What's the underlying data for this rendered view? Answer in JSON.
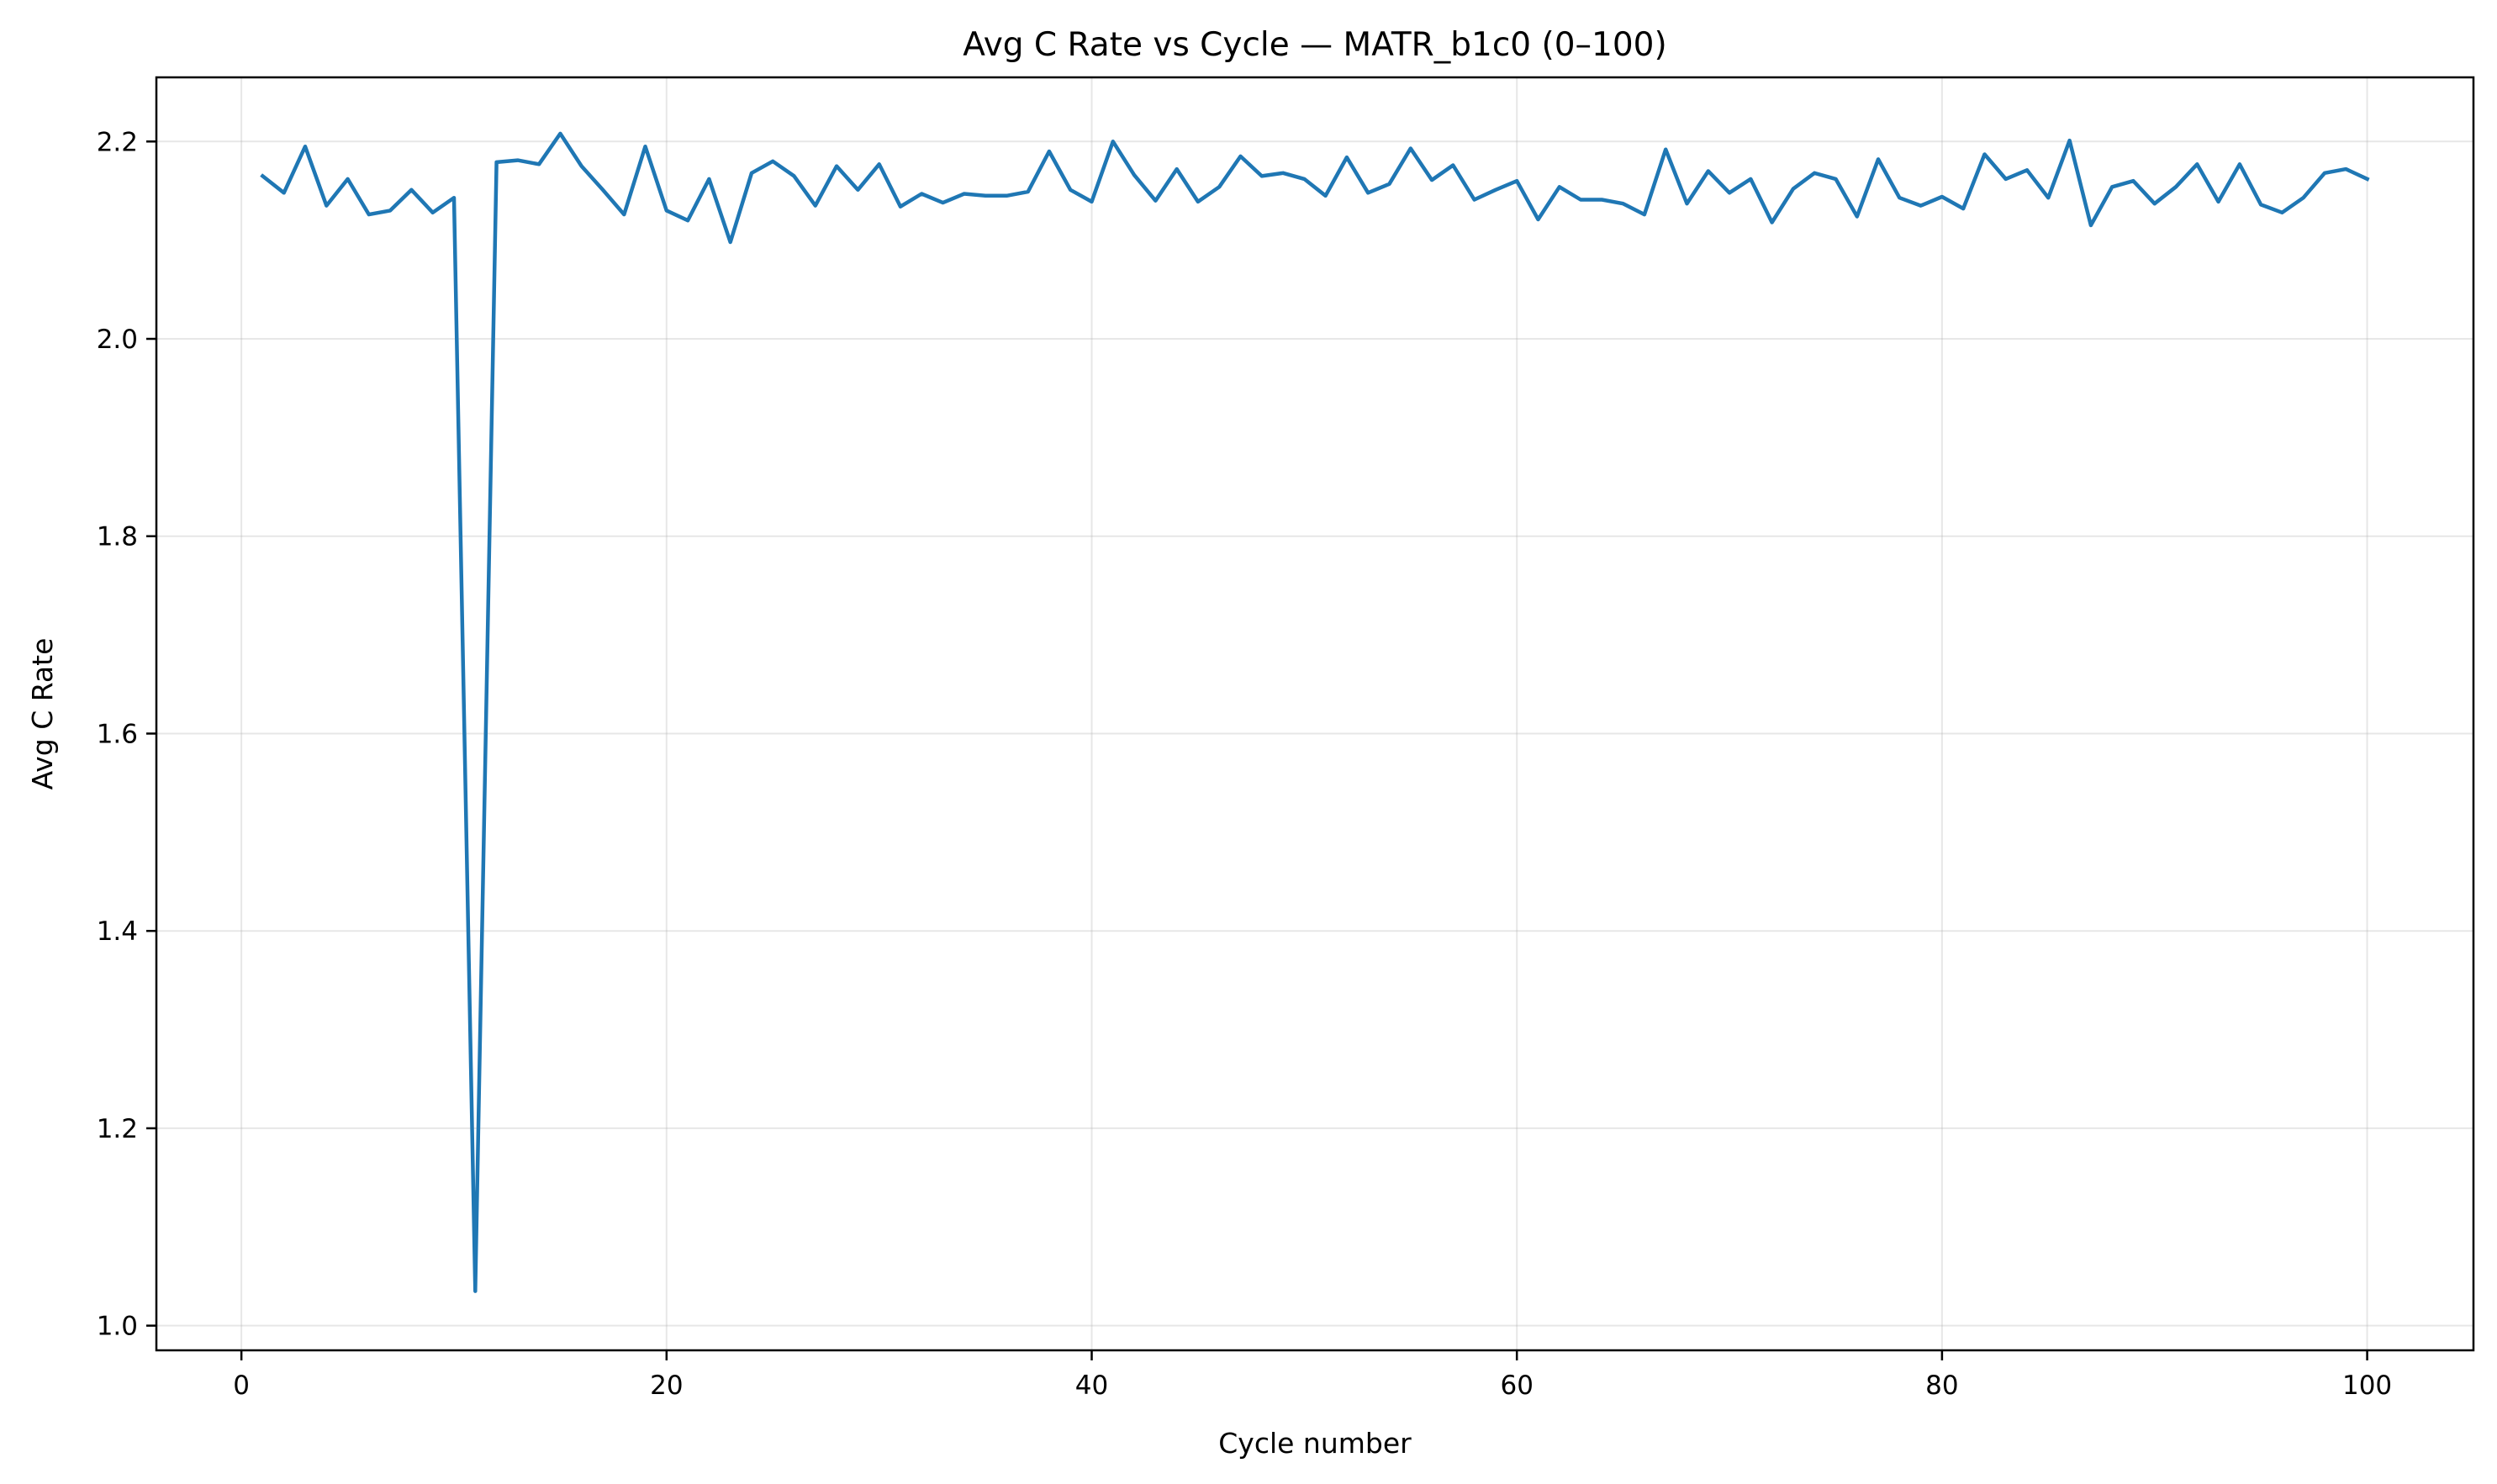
{
  "chart_data": {
    "type": "line",
    "title": "Avg C Rate vs Cycle — MATR_b1c0 (0–100)",
    "xlabel": "Cycle number",
    "ylabel": "Avg C Rate",
    "xlim": [
      -4,
      105
    ],
    "ylim": [
      0.975,
      2.265
    ],
    "xticks": [
      0,
      20,
      40,
      60,
      80,
      100
    ],
    "xtick_labels": [
      "0",
      "20",
      "40",
      "60",
      "80",
      "100"
    ],
    "yticks": [
      1.0,
      1.2,
      1.4,
      1.6,
      1.8,
      2.0,
      2.2
    ],
    "ytick_labels": [
      "1.0",
      "1.2",
      "1.4",
      "1.6",
      "1.8",
      "2.0",
      "2.2"
    ],
    "grid": true,
    "legend": "none",
    "series": [
      {
        "color": "#1f77b4",
        "x": [
          1,
          2,
          3,
          4,
          5,
          6,
          7,
          8,
          9,
          10,
          11,
          12,
          13,
          14,
          15,
          16,
          17,
          18,
          19,
          20,
          21,
          22,
          23,
          24,
          25,
          26,
          27,
          28,
          29,
          30,
          31,
          32,
          33,
          34,
          35,
          36,
          37,
          38,
          39,
          40,
          41,
          42,
          43,
          44,
          45,
          46,
          47,
          48,
          49,
          50,
          51,
          52,
          53,
          54,
          55,
          56,
          57,
          58,
          59,
          60,
          61,
          62,
          63,
          64,
          65,
          66,
          67,
          68,
          69,
          70,
          71,
          72,
          73,
          74,
          75,
          76,
          77,
          78,
          79,
          80,
          81,
          82,
          83,
          84,
          85,
          86,
          87,
          88,
          89,
          90,
          91,
          92,
          93,
          94,
          95,
          96,
          97,
          98,
          99,
          100
        ],
        "y": [
          2.165,
          2.148,
          2.195,
          2.135,
          2.162,
          2.126,
          2.13,
          2.151,
          2.128,
          2.143,
          1.035,
          2.179,
          2.181,
          2.177,
          2.208,
          2.175,
          2.151,
          2.126,
          2.195,
          2.13,
          2.12,
          2.162,
          2.098,
          2.168,
          2.18,
          2.165,
          2.135,
          2.175,
          2.151,
          2.177,
          2.134,
          2.147,
          2.138,
          2.147,
          2.145,
          2.145,
          2.149,
          2.19,
          2.151,
          2.139,
          2.2,
          2.166,
          2.14,
          2.172,
          2.139,
          2.154,
          2.185,
          2.165,
          2.168,
          2.162,
          2.145,
          2.184,
          2.148,
          2.157,
          2.193,
          2.161,
          2.176,
          2.141,
          2.151,
          2.16,
          2.121,
          2.154,
          2.141,
          2.141,
          2.137,
          2.126,
          2.192,
          2.137,
          2.17,
          2.148,
          2.162,
          2.118,
          2.152,
          2.168,
          2.162,
          2.124,
          2.182,
          2.143,
          2.135,
          2.144,
          2.132,
          2.187,
          2.162,
          2.171,
          2.143,
          2.201,
          2.115,
          2.154,
          2.16,
          2.137,
          2.154,
          2.177,
          2.139,
          2.177,
          2.136,
          2.128,
          2.143,
          2.168,
          2.172,
          2.162
        ]
      }
    ]
  }
}
